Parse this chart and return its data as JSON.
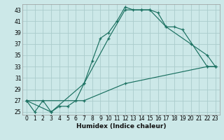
{
  "xlabel": "Humidex (Indice chaleur)",
  "background_color": "#cce8e8",
  "grid_color": "#aacccc",
  "line_color": "#1a7060",
  "xlim": [
    -0.5,
    23.5
  ],
  "ylim": [
    24.5,
    44
  ],
  "xticks": [
    0,
    1,
    2,
    3,
    4,
    5,
    6,
    7,
    8,
    9,
    10,
    11,
    12,
    13,
    14,
    15,
    16,
    17,
    18,
    19,
    20,
    21,
    22,
    23
  ],
  "yticks": [
    25,
    27,
    29,
    31,
    33,
    35,
    37,
    39,
    41,
    43
  ],
  "line1_x": [
    0,
    1,
    2,
    3,
    4,
    5,
    6,
    7,
    8,
    9,
    10,
    11,
    12,
    13,
    14,
    15,
    16,
    17,
    18,
    19,
    22,
    23
  ],
  "line1_y": [
    27,
    25,
    27,
    25,
    26,
    26,
    27,
    30,
    34,
    38,
    39,
    41,
    43.5,
    43,
    43,
    43,
    42.5,
    40,
    40,
    39.5,
    33,
    33
  ],
  "line2_x": [
    0,
    3,
    7,
    10,
    12,
    14,
    15,
    17,
    20,
    22,
    23
  ],
  "line2_y": [
    27,
    25,
    30,
    38,
    43,
    43,
    43,
    40,
    37,
    35,
    33
  ],
  "line3_x": [
    0,
    7,
    12,
    22,
    23
  ],
  "line3_y": [
    27,
    27,
    30,
    33,
    33
  ],
  "xlabel_fontsize": 6.5,
  "tick_fontsize": 5.5
}
